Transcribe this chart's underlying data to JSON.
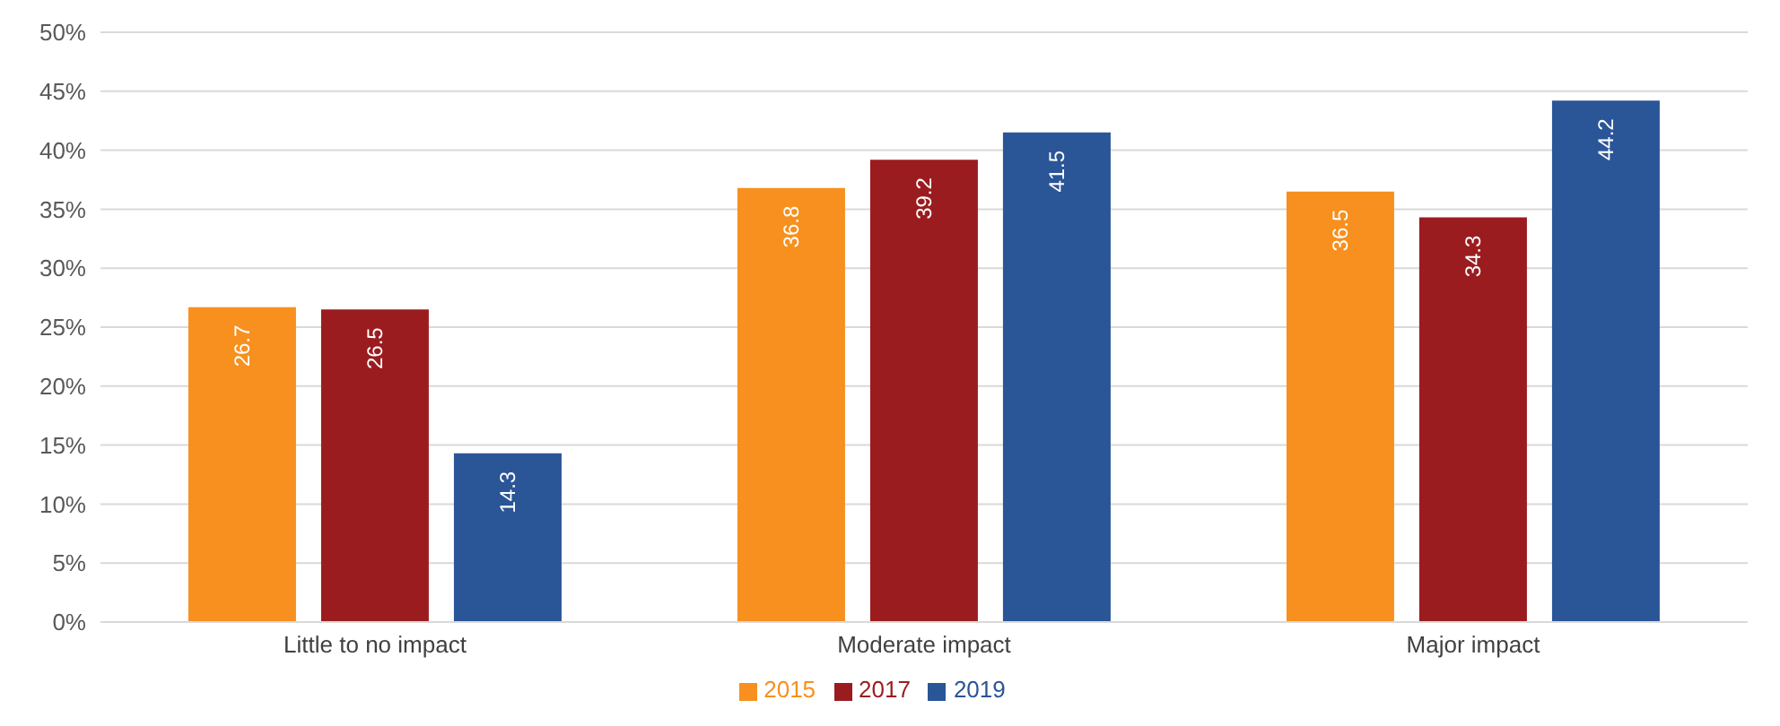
{
  "chart_data": {
    "type": "bar",
    "categories": [
      "Little to no impact",
      "Moderate impact",
      "Major impact"
    ],
    "series": [
      {
        "name": "2015",
        "color": "#f7901e",
        "values": [
          26.7,
          36.8,
          36.5
        ]
      },
      {
        "name": "2017",
        "color": "#9b1c1f",
        "values": [
          26.5,
          39.2,
          34.3
        ]
      },
      {
        "name": "2019",
        "color": "#2a5597",
        "values": [
          14.3,
          41.5,
          44.2
        ]
      }
    ],
    "ylim": [
      0,
      50
    ],
    "yticks": [
      {
        "value": 0,
        "label": "0%"
      },
      {
        "value": 5,
        "label": "5%"
      },
      {
        "value": 10,
        "label": "10%"
      },
      {
        "value": 15,
        "label": "15%"
      },
      {
        "value": 20,
        "label": "20%"
      },
      {
        "value": 25,
        "label": "25%"
      },
      {
        "value": 30,
        "label": "30%"
      },
      {
        "value": 35,
        "label": "35%"
      },
      {
        "value": 40,
        "label": "40%"
      },
      {
        "value": 45,
        "label": "45%"
      },
      {
        "value": 50,
        "label": "50%"
      }
    ],
    "grid": "y",
    "legend": "bottom",
    "data_labels": true
  }
}
